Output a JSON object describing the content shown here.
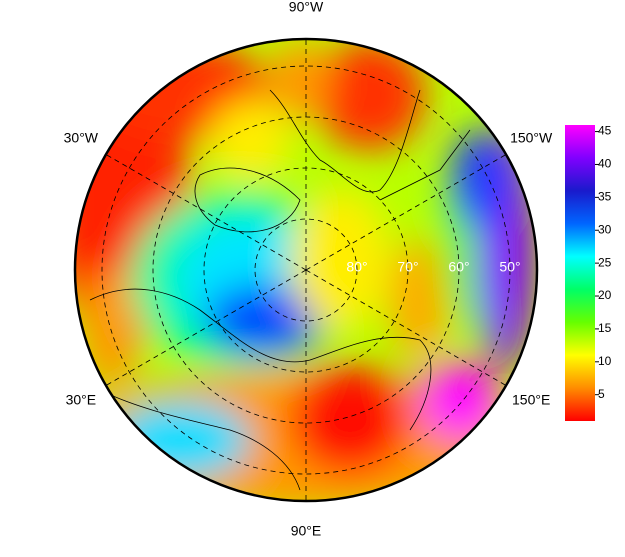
{
  "map": {
    "projection": "polar stereographic (north)",
    "longitudes": [
      {
        "value": -90,
        "label": "90°W"
      },
      {
        "value": -30,
        "label": "30°W"
      },
      {
        "value": -150,
        "label": "150°W"
      },
      {
        "value": 30,
        "label": "30°E"
      },
      {
        "value": 150,
        "label": "150°E"
      },
      {
        "value": 90,
        "label": "90°E"
      }
    ],
    "latitudes": [
      {
        "value": 80,
        "label": "80°"
      },
      {
        "value": 70,
        "label": "70°"
      },
      {
        "value": 60,
        "label": "60°"
      },
      {
        "value": 50,
        "label": "50°"
      }
    ]
  },
  "colorbar": {
    "lim": [
      1,
      46
    ],
    "ticks": [
      5,
      10,
      15,
      20,
      25,
      30,
      35,
      40,
      45
    ],
    "colors": [
      "#ff0000",
      "#ff8c00",
      "#ffff00",
      "#66ff00",
      "#00ff66",
      "#00ffff",
      "#0066ff",
      "#1a1acc",
      "#8000ff",
      "#ff00ff"
    ]
  }
}
